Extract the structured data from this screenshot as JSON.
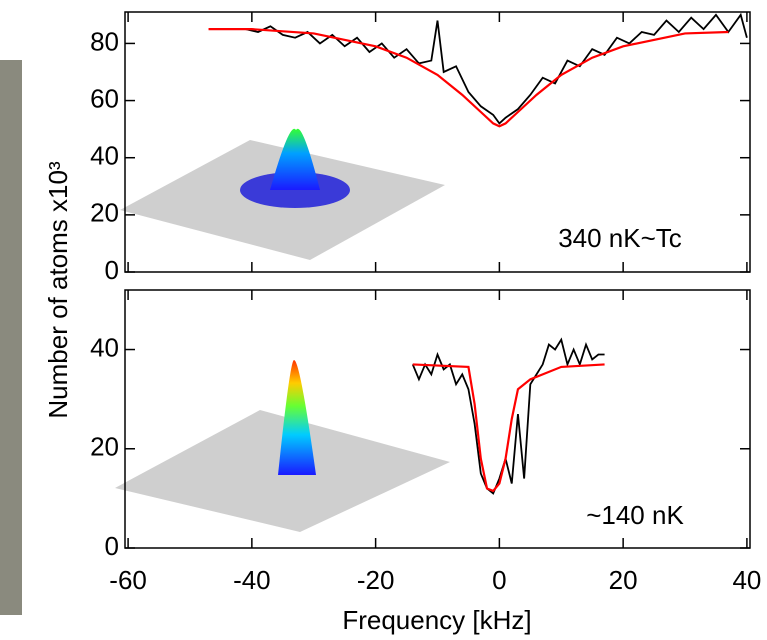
{
  "chart_data": [
    {
      "type": "line",
      "annotation": "340 nK~Tc",
      "ylabel": "Number of atoms x10³",
      "xlim": [
        -60.5,
        40.5
      ],
      "xticks": [
        -60,
        -40,
        -20,
        0,
        20,
        40
      ],
      "ylim": [
        0,
        91
      ],
      "yticks": [
        0,
        20,
        40,
        60,
        80
      ],
      "series": [
        {
          "color": "#000000",
          "x": [
            -41,
            -39,
            -37,
            -35,
            -33,
            -31,
            -29,
            -27,
            -25,
            -23,
            -21,
            -19,
            -17,
            -15,
            -13,
            -11,
            -10,
            -9,
            -7,
            -5,
            -3,
            -1,
            0,
            1,
            3,
            5,
            7,
            9,
            11,
            13,
            15,
            17,
            19,
            21,
            23,
            25,
            27,
            29,
            31,
            33,
            35,
            37,
            39,
            40
          ],
          "values": [
            85,
            84,
            86,
            83,
            82,
            84,
            80,
            83,
            79,
            82,
            77,
            80,
            75,
            78,
            73,
            74,
            88,
            70,
            72,
            63,
            58,
            55,
            52,
            54,
            57,
            62,
            68,
            66,
            74,
            72,
            78,
            76,
            82,
            80,
            84,
            83,
            88,
            84,
            89,
            85,
            90,
            84,
            90,
            82
          ]
        },
        {
          "color": "#ff0000",
          "x": [
            -47,
            -40,
            -30,
            -20,
            -15,
            -10,
            -6,
            -3,
            -1,
            0,
            1,
            3,
            6,
            10,
            15,
            20,
            30,
            37
          ],
          "values": [
            85,
            85,
            83.5,
            79,
            75,
            69,
            62,
            56,
            52,
            51,
            52,
            56,
            62,
            69,
            75,
            79,
            83.5,
            84
          ]
        }
      ]
    },
    {
      "type": "line",
      "annotation": "~140 nK",
      "xlabel": "Frequency [kHz]",
      "xlim": [
        -60.5,
        40.5
      ],
      "xticks": [
        -60,
        -40,
        -20,
        0,
        20,
        40
      ],
      "ylim": [
        0,
        52
      ],
      "yticks": [
        0,
        20,
        40
      ],
      "series": [
        {
          "color": "#000000",
          "x": [
            -14,
            -13,
            -12,
            -11,
            -10,
            -9,
            -8,
            -7,
            -6,
            -5,
            -4,
            -3,
            -2,
            -1,
            0,
            1,
            2,
            3,
            4,
            5,
            6,
            7,
            8,
            9,
            10,
            11,
            12,
            13,
            14,
            15,
            16,
            17
          ],
          "values": [
            37,
            34,
            37,
            35,
            39,
            36,
            37,
            33,
            35,
            32,
            25,
            15,
            12,
            11,
            14,
            18,
            13,
            27,
            14,
            33,
            35,
            37,
            41,
            40,
            42,
            37,
            40,
            37,
            41,
            38,
            39,
            39
          ]
        },
        {
          "color": "#ff0000",
          "x": [
            -14,
            -5,
            -4,
            -3,
            -2,
            -1,
            0,
            1,
            2,
            3,
            5,
            10,
            17
          ],
          "values": [
            37,
            36.5,
            29,
            18,
            12,
            11.5,
            13,
            18,
            26,
            32,
            34,
            36.5,
            37
          ]
        }
      ]
    }
  ]
}
